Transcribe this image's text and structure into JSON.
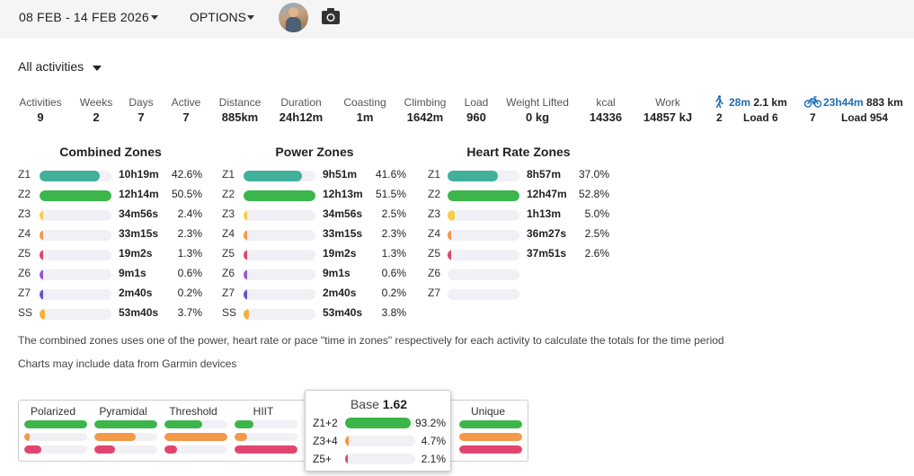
{
  "header": {
    "date_range": "08 FEB - 14 FEB 2026",
    "options_label": "OPTIONS"
  },
  "filter": {
    "label": "All activities"
  },
  "stats": [
    {
      "label": "Activities",
      "value": "9"
    },
    {
      "label": "Weeks",
      "value": "2"
    },
    {
      "label": "Days",
      "value": "7"
    },
    {
      "label": "Active",
      "value": "7"
    },
    {
      "label": "Distance",
      "value": "885km"
    },
    {
      "label": "Duration",
      "value": "24h12m"
    },
    {
      "label": "Coasting",
      "value": "1m"
    },
    {
      "label": "Climbing",
      "value": "1642m"
    },
    {
      "label": "Load",
      "value": "960"
    },
    {
      "label": "Weight Lifted",
      "value": "0 kg"
    },
    {
      "label": "kcal",
      "value": "14336"
    },
    {
      "label": "Work",
      "value": "14857 kJ"
    }
  ],
  "sports": {
    "walk": {
      "icon": "walking-icon",
      "time": "28m",
      "distance": "2.1 km",
      "count": "2",
      "load": "Load 6"
    },
    "ride": {
      "icon": "bicycle-icon",
      "time": "23h44m",
      "distance": "883 km",
      "count": "7",
      "load": "Load 954"
    }
  },
  "colors": {
    "Z1": "#40b09a",
    "Z2": "#3cb54a",
    "Z3": "#f5cf4a",
    "Z4": "#f4984a",
    "Z5": "#e0456f",
    "Z6": "#9b59d0",
    "Z7": "#6f4fc9",
    "SS": "#f3b23e",
    "track": "#f0f0f5"
  },
  "zone_panels": [
    {
      "title": "Combined Zones",
      "rows": [
        {
          "zone": "Z1",
          "time": "10h19m",
          "pct": "42.6%",
          "fraction": 0.843
        },
        {
          "zone": "Z2",
          "time": "12h14m",
          "pct": "50.5%",
          "fraction": 1.0
        },
        {
          "zone": "Z3",
          "time": "34m56s",
          "pct": "2.4%",
          "fraction": 0.048
        },
        {
          "zone": "Z4",
          "time": "33m15s",
          "pct": "2.3%",
          "fraction": 0.046
        },
        {
          "zone": "Z5",
          "time": "19m2s",
          "pct": "1.3%",
          "fraction": 0.026
        },
        {
          "zone": "Z6",
          "time": "9m1s",
          "pct": "0.6%",
          "fraction": 0.012
        },
        {
          "zone": "Z7",
          "time": "2m40s",
          "pct": "0.2%",
          "fraction": 0.004
        },
        {
          "zone": "SS",
          "time": "53m40s",
          "pct": "3.7%",
          "fraction": 0.073
        }
      ]
    },
    {
      "title": "Power Zones",
      "rows": [
        {
          "zone": "Z1",
          "time": "9h51m",
          "pct": "41.6%",
          "fraction": 0.808
        },
        {
          "zone": "Z2",
          "time": "12h13m",
          "pct": "51.5%",
          "fraction": 1.0
        },
        {
          "zone": "Z3",
          "time": "34m56s",
          "pct": "2.5%",
          "fraction": 0.049
        },
        {
          "zone": "Z4",
          "time": "33m15s",
          "pct": "2.3%",
          "fraction": 0.045
        },
        {
          "zone": "Z5",
          "time": "19m2s",
          "pct": "1.3%",
          "fraction": 0.025
        },
        {
          "zone": "Z6",
          "time": "9m1s",
          "pct": "0.6%",
          "fraction": 0.012
        },
        {
          "zone": "Z7",
          "time": "2m40s",
          "pct": "0.2%",
          "fraction": 0.004
        },
        {
          "zone": "SS",
          "time": "53m40s",
          "pct": "3.8%",
          "fraction": 0.074
        }
      ]
    },
    {
      "title": "Heart Rate Zones",
      "rows": [
        {
          "zone": "Z1",
          "time": "8h57m",
          "pct": "37.0%",
          "fraction": 0.7
        },
        {
          "zone": "Z2",
          "time": "12h47m",
          "pct": "52.8%",
          "fraction": 1.0
        },
        {
          "zone": "Z3",
          "time": "1h13m",
          "pct": "5.0%",
          "fraction": 0.095
        },
        {
          "zone": "Z4",
          "time": "36m27s",
          "pct": "2.5%",
          "fraction": 0.047
        },
        {
          "zone": "Z5",
          "time": "37m51s",
          "pct": "2.6%",
          "fraction": 0.049
        },
        {
          "zone": "Z6",
          "time": "",
          "pct": "",
          "fraction": 0
        },
        {
          "zone": "Z7",
          "time": "",
          "pct": "",
          "fraction": 0
        }
      ]
    }
  ],
  "notes": {
    "combined": "The combined zones uses one of the power, heart rate or pace \"time in zones\" respectively for each activity to calculate the totals for the time period",
    "garmin": "Charts may include data from Garmin devices"
  },
  "distribution": {
    "columns": [
      {
        "title": "Polarized",
        "bars": [
          {
            "zone": "Z2",
            "fraction": 1.0
          },
          {
            "zone": "Z4",
            "fraction": 0.08
          },
          {
            "zone": "Z5",
            "fraction": 0.27
          }
        ]
      },
      {
        "title": "Pyramidal",
        "bars": [
          {
            "zone": "Z2",
            "fraction": 1.0
          },
          {
            "zone": "Z4",
            "fraction": 0.66
          },
          {
            "zone": "Z5",
            "fraction": 0.33
          }
        ]
      },
      {
        "title": "Threshold",
        "bars": [
          {
            "zone": "Z2",
            "fraction": 0.6
          },
          {
            "zone": "Z4",
            "fraction": 1.0
          },
          {
            "zone": "Z5",
            "fraction": 0.2
          }
        ]
      },
      {
        "title": "HIIT",
        "bars": [
          {
            "zone": "Z2",
            "fraction": 0.3
          },
          {
            "zone": "Z4",
            "fraction": 0.2
          },
          {
            "zone": "Z5",
            "fraction": 1.0
          }
        ]
      },
      {
        "title": "Unique",
        "bars": [
          {
            "zone": "Z2",
            "fraction": 1.0
          },
          {
            "zone": "Z4",
            "fraction": 1.0
          },
          {
            "zone": "Z5",
            "fraction": 1.0
          }
        ]
      }
    ]
  },
  "tooltip": {
    "label": "Base",
    "value": "1.62",
    "rows": [
      {
        "zone": "Z1+2",
        "pct": "93.2%",
        "fraction": 0.932,
        "color": "Z2"
      },
      {
        "zone": "Z3+4",
        "pct": "4.7%",
        "fraction": 0.047,
        "color": "Z4"
      },
      {
        "zone": "Z5+",
        "pct": "2.1%",
        "fraction": 0.021,
        "color": "Z5"
      }
    ]
  }
}
